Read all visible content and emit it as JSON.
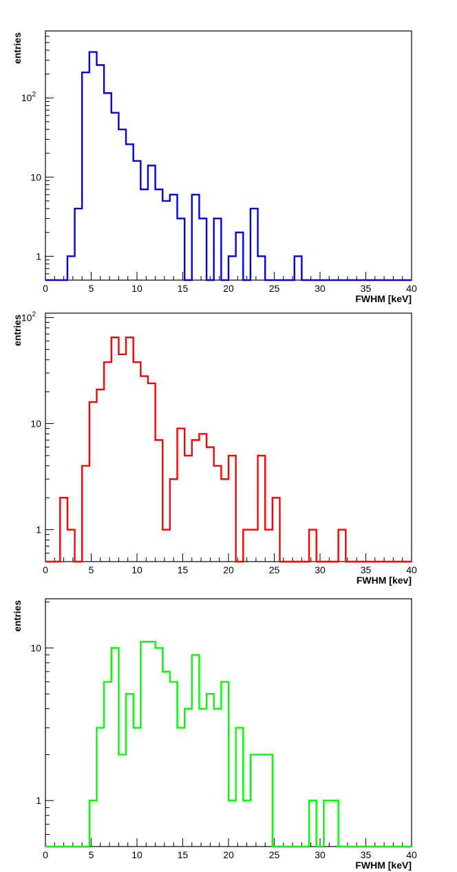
{
  "chart_data": [
    {
      "type": "histogram",
      "title": "",
      "xlabel": "FWHM [keV]",
      "ylabel": "entries",
      "xlim": [
        0,
        40
      ],
      "ylim": [
        0.5,
        700
      ],
      "log_y": true,
      "bin_width": 0.8,
      "color": "#0000e0",
      "x_ticks": [
        "0",
        "5",
        "10",
        "15",
        "20",
        "25",
        "30",
        "35",
        "40"
      ],
      "y_ticks": [
        {
          "value": 1,
          "label": "1"
        },
        {
          "value": 10,
          "label": "10"
        },
        {
          "value": 100,
          "label": "10",
          "sup": "2"
        }
      ],
      "counts": [
        0,
        0,
        0,
        1,
        4,
        210,
        380,
        260,
        115,
        65,
        40,
        26,
        16,
        7,
        14,
        7,
        5,
        6,
        3,
        0,
        6,
        3,
        0,
        3,
        0,
        1,
        2,
        0,
        4,
        1,
        0,
        0,
        0,
        0,
        1,
        0,
        0,
        0,
        0,
        0,
        0,
        0,
        0,
        0,
        0,
        0,
        0,
        0,
        0,
        0
      ]
    },
    {
      "type": "histogram",
      "title": "",
      "xlabel": "FWHM [kev]",
      "ylabel": "entries",
      "xlim": [
        0,
        40
      ],
      "ylim": [
        0.5,
        110
      ],
      "log_y": true,
      "bin_width": 0.8,
      "color": "#ff0000",
      "x_ticks": [
        "0",
        "5",
        "10",
        "15",
        "20",
        "25",
        "30",
        "35",
        "40"
      ],
      "y_ticks": [
        {
          "value": 1,
          "label": "1"
        },
        {
          "value": 10,
          "label": "10"
        },
        {
          "value": 100,
          "label": "10",
          "sup": "2"
        }
      ],
      "counts": [
        0,
        0,
        2,
        1,
        0,
        4,
        16,
        21,
        38,
        65,
        45,
        65,
        38,
        28,
        24,
        7,
        1,
        3,
        9,
        5,
        7,
        8,
        6,
        4,
        3,
        5,
        0,
        1,
        1,
        5,
        1,
        2,
        0,
        0,
        0,
        0,
        1,
        0,
        0,
        0,
        1,
        0,
        0,
        0,
        0,
        0,
        0,
        0,
        0,
        0
      ]
    },
    {
      "type": "histogram",
      "title": "",
      "xlabel": "FWHM [keV]",
      "ylabel": "entries",
      "xlim": [
        0,
        40
      ],
      "ylim": [
        0.5,
        21
      ],
      "log_y": true,
      "bin_width": 0.8,
      "color": "#00ff00",
      "x_ticks": [
        "0",
        "5",
        "10",
        "15",
        "20",
        "25",
        "30",
        "35",
        "40"
      ],
      "y_ticks": [
        {
          "value": 1,
          "label": "1"
        },
        {
          "value": 10,
          "label": "10"
        }
      ],
      "counts": [
        0,
        0,
        0,
        0,
        0,
        0,
        1,
        3,
        6,
        10,
        2,
        5,
        3,
        11,
        11,
        10,
        7,
        6,
        3,
        4,
        9,
        4,
        5,
        4,
        6,
        1,
        3,
        1,
        2,
        2,
        2,
        0,
        0,
        0,
        0,
        0,
        1,
        0,
        1,
        1,
        0,
        0,
        0,
        0,
        0,
        0,
        0,
        0,
        0,
        0
      ]
    }
  ]
}
